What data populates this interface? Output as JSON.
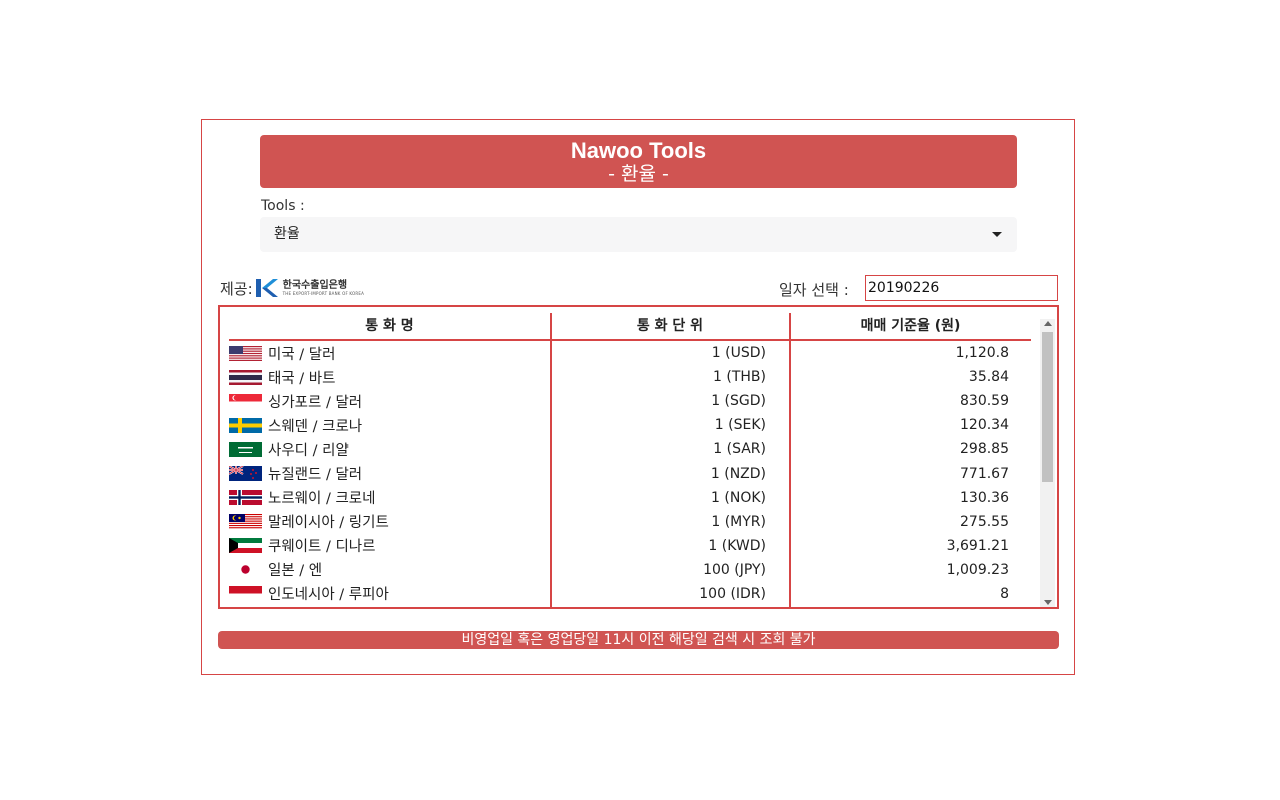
{
  "header": {
    "title": "Nawoo Tools",
    "subtitle": "- 환율 -"
  },
  "tools": {
    "label": "Tools :",
    "selected": "환율"
  },
  "provider": {
    "label": "제공:",
    "logo_ko": "한국수출입은행",
    "logo_en": "THE EXPORT-IMPORT BANK OF KOREA"
  },
  "date": {
    "label": "일자 선택 :",
    "value": "20190226"
  },
  "table": {
    "headers": [
      "통 화 명",
      "통 화 단 위",
      "매매 기준율 (원)"
    ],
    "rows": [
      {
        "flag": "us-flag-icon",
        "name": "미국 / 달러",
        "unit": "1 (USD)",
        "rate": "1,120.8"
      },
      {
        "flag": "th-flag-icon",
        "name": "태국 / 바트",
        "unit": "1 (THB)",
        "rate": "35.84"
      },
      {
        "flag": "sg-flag-icon",
        "name": "싱가포르 / 달러",
        "unit": "1 (SGD)",
        "rate": "830.59"
      },
      {
        "flag": "se-flag-icon",
        "name": "스웨덴 / 크로나",
        "unit": "1 (SEK)",
        "rate": "120.34"
      },
      {
        "flag": "sa-flag-icon",
        "name": "사우디 / 리얄",
        "unit": "1 (SAR)",
        "rate": "298.85"
      },
      {
        "flag": "nz-flag-icon",
        "name": "뉴질랜드 / 달러",
        "unit": "1 (NZD)",
        "rate": "771.67"
      },
      {
        "flag": "no-flag-icon",
        "name": "노르웨이 / 크로네",
        "unit": "1 (NOK)",
        "rate": "130.36"
      },
      {
        "flag": "my-flag-icon",
        "name": "말레이시아 / 링기트",
        "unit": "1 (MYR)",
        "rate": "275.55"
      },
      {
        "flag": "kw-flag-icon",
        "name": "쿠웨이트 / 디나르",
        "unit": "1 (KWD)",
        "rate": "3,691.21"
      },
      {
        "flag": "jp-flag-icon",
        "name": "일본 / 엔",
        "unit": "100 (JPY)",
        "rate": "1,009.23"
      },
      {
        "flag": "id-flag-icon",
        "name": "인도네시아 / 루피아",
        "unit": "100 (IDR)",
        "rate": "8"
      }
    ]
  },
  "notice": "비영업일 혹은 영업당일 11시 이전 해당일 검색 시 조회 불가",
  "colors": {
    "accent": "#d05452",
    "border": "#d64545"
  }
}
